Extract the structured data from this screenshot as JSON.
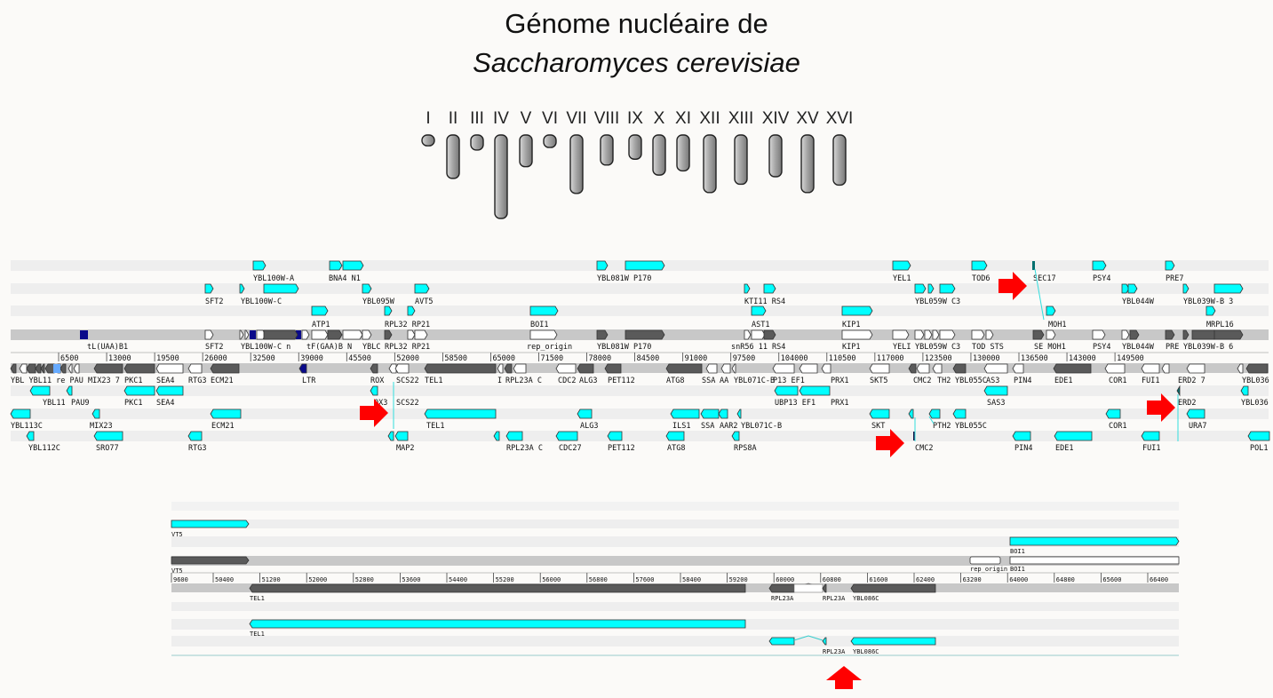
{
  "title": {
    "line1": "Génome nucléaire de",
    "line2": "Saccharomyces cerevisiae"
  },
  "chromosomes": [
    {
      "label": "I",
      "size": 0.13
    },
    {
      "label": "II",
      "size": 0.52
    },
    {
      "label": "III",
      "size": 0.18
    },
    {
      "label": "IV",
      "size": 1.0
    },
    {
      "label": "V",
      "size": 0.38
    },
    {
      "label": "VI",
      "size": 0.15
    },
    {
      "label": "VII",
      "size": 0.7
    },
    {
      "label": "VIII",
      "size": 0.36
    },
    {
      "label": "IX",
      "size": 0.29
    },
    {
      "label": "X",
      "size": 0.48
    },
    {
      "label": "XI",
      "size": 0.43
    },
    {
      "label": "XII",
      "size": 0.69
    },
    {
      "label": "XIII",
      "size": 0.59
    },
    {
      "label": "XIV",
      "size": 0.5
    },
    {
      "label": "XV",
      "size": 0.69
    },
    {
      "label": "XVI",
      "size": 0.6
    }
  ],
  "browser_main": {
    "ticks": [
      "6500",
      "13000",
      "19500",
      "26000",
      "32500",
      "39000",
      "45500",
      "52000",
      "58500",
      "65000",
      "71500",
      "78000",
      "84500",
      "91000",
      "97500",
      "104000",
      "110500",
      "117000",
      "123500",
      "130000",
      "136500",
      "143000",
      "149500"
    ],
    "tick_row_prefix": "YBL YBL11 re PAU MIX23 7",
    "labels": {
      "r1": [
        "YBL100W-A",
        "BNA4 N1",
        "YBL081W P170",
        "YEL1",
        "TOD6",
        "SEC17",
        "PSY4",
        "PRE7"
      ],
      "r2": [
        "SFT2",
        "YBL100W-C",
        "YBL095W",
        "AVT5",
        "KTI11 RS4",
        "YBL059W C3",
        "YBL044W",
        "YBL039W-B 3"
      ],
      "r3": [
        "ATP1",
        "RPL32 RP21",
        "BOI1",
        "AST1",
        "KIP1",
        "MOH1",
        "MRPL16"
      ],
      "r4": [
        "tL(UAA)B1",
        "SFT2",
        "YBL100W-C n",
        "tF(GAA)B N",
        "YBLC",
        "RPL32 RP21",
        "rep_origin",
        "YBL081W P170",
        "snR56 11 RS4",
        "KIP1",
        "YELI",
        "YBL059W C3",
        "TOD STS",
        "SE MOH1",
        "PSY4",
        "YBL044W",
        "PRE",
        "YBL039W-B 6"
      ],
      "r5": [
        "PKC1",
        "SEA4",
        "RTG3",
        "ECM21",
        "LTR",
        "ROX",
        "SCS22",
        "TEL1",
        "I",
        "RPL23A C",
        "CDC2",
        "ALG3",
        "PET112",
        "ATG8",
        "SSA",
        "AA",
        "YBL071C-B",
        "P13 EF1",
        "PRX1",
        "SKT5",
        "CMC2",
        "TH2",
        "YBL055C",
        "AS3",
        "PIN4",
        "EDE1",
        "COR1",
        "FUI1",
        "ERD2 7",
        "YBL036"
      ],
      "r6": [
        "YBL11",
        "PAU9",
        "PKC1",
        "SEA4",
        "OX3",
        "SCS22",
        "UBP13 EF1",
        "PRX1",
        "SAS3",
        "ERD2",
        "YBL036"
      ],
      "r7": [
        "YBL113C",
        "MIX23",
        "ECM21",
        "TEL1",
        "ALG3",
        "ILS1",
        "SSA",
        "AAR2",
        "YBL071C-B",
        "SKT",
        "PTH2",
        "YBL055C",
        "COR1",
        "URA7"
      ],
      "r8": [
        "YBL112C",
        "SRO77",
        "RTG3",
        "MAP2",
        "RPL23A C",
        "CDC27",
        "PET112",
        "ATG8",
        "RPS8A",
        "CMC2",
        "PIN4",
        "EDE1",
        "FUI1",
        "POL1"
      ]
    }
  },
  "browser_zoom": {
    "ticks": [
      "9600",
      "50400",
      "51200",
      "52000",
      "52800",
      "53600",
      "54400",
      "55200",
      "56000",
      "56800",
      "57600",
      "58400",
      "59200",
      "60000",
      "60800",
      "61600",
      "62400",
      "63200",
      "64000",
      "64800",
      "65600",
      "66400"
    ],
    "labels": {
      "top_left": "VT5",
      "mid_left": "VT5",
      "boi1_top": "BOI1",
      "rep": "rep_origin",
      "boi1_mid": "BOI1",
      "tel1_a": "TEL1",
      "rpl23a_a": "RPL23A",
      "rpl23a_b": "RPL23A",
      "ybl086c_a": "YBL086C",
      "tel1_b": "TEL1",
      "rpl23a_c": "RPL23A",
      "ybl086c_b": "YBL086C"
    }
  },
  "colors": {
    "gene_cyan": "#00ffff",
    "gene_dark": "#5a5a5a",
    "gene_white": "#ffffff",
    "arrow_red": "#ff0000",
    "chrom_gray": "#a8a8a8",
    "row_light": "#eeeeee",
    "row_mid": "#c8c8c8",
    "trna_navy": "#0a0a8a"
  }
}
